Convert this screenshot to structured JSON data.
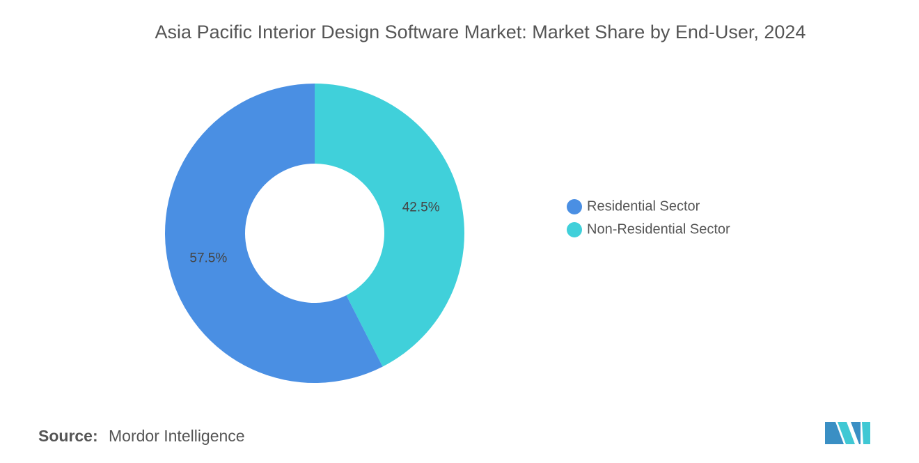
{
  "chart_data": {
    "type": "pie",
    "title": "Asia Pacific Interior Design Software Market: Market Share by End-User, 2024",
    "categories": [
      "Residential Sector",
      "Non-Residential Sector"
    ],
    "values": [
      57.5,
      42.5
    ],
    "value_labels": [
      "57.5%",
      "42.5%"
    ],
    "colors": [
      "#4a8fe3",
      "#40d0da"
    ],
    "donut": true,
    "legend": "right"
  },
  "source": {
    "label": "Source:",
    "text": "Mordor Intelligence"
  }
}
